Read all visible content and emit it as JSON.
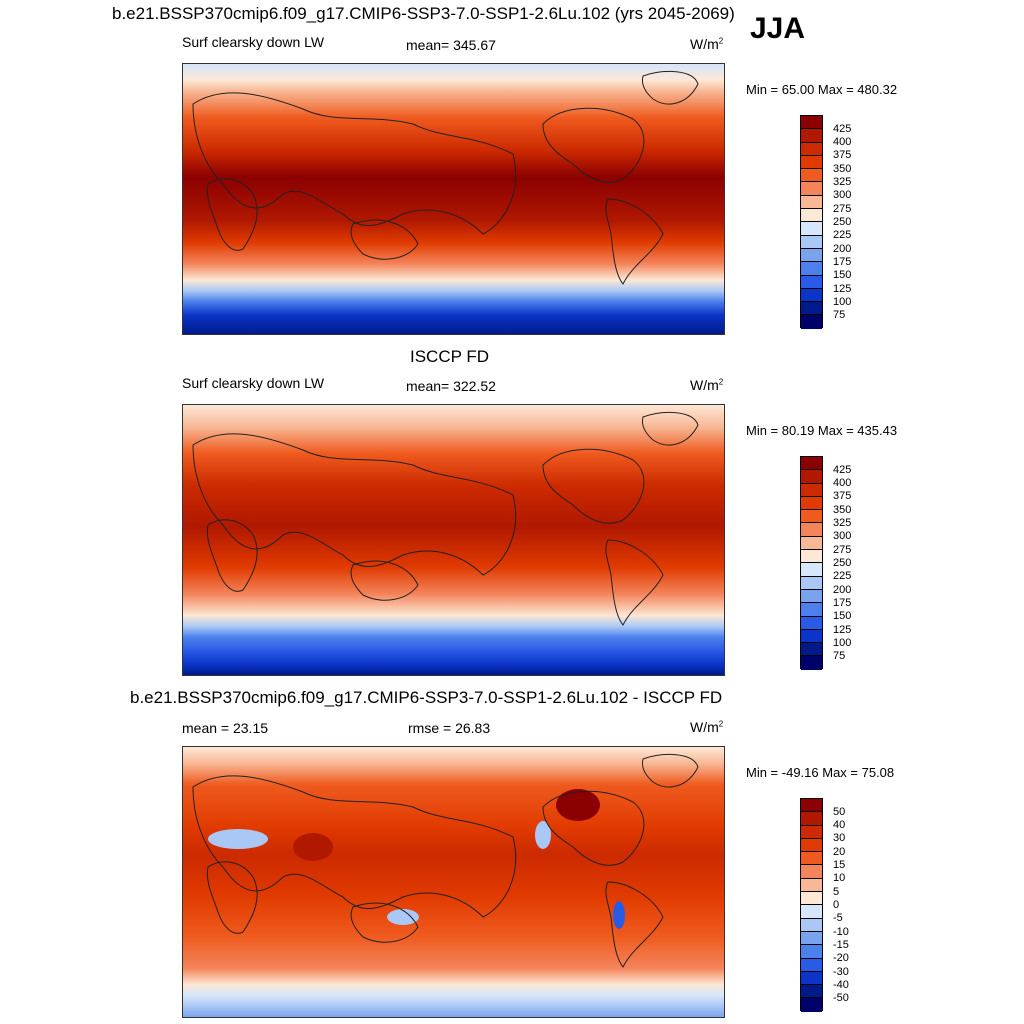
{
  "season": "JJA",
  "panels": [
    {
      "title": "b.e21.BSSP370cmip6.f09_g17.CMIP6-SSP3-7.0-SSP1-2.6Lu.102 (yrs 2045-2069)",
      "left_label": "Surf clearsky down LW",
      "center_label": "mean= 345.67",
      "units": "W/m",
      "units_sup": "2",
      "minmax": "Min =  65.00 Max = 480.32",
      "levels": [
        "425",
        "400",
        "375",
        "350",
        "325",
        "300",
        "275",
        "250",
        "225",
        "200",
        "175",
        "150",
        "125",
        "100",
        "75"
      ]
    },
    {
      "title": "ISCCP FD",
      "left_label": "Surf clearsky down LW",
      "center_label": "mean= 322.52",
      "units": "W/m",
      "units_sup": "2",
      "minmax": "Min =  80.19 Max = 435.43",
      "levels": [
        "425",
        "400",
        "375",
        "350",
        "325",
        "300",
        "275",
        "250",
        "225",
        "200",
        "175",
        "150",
        "125",
        "100",
        "75"
      ]
    },
    {
      "title": "b.e21.BSSP370cmip6.f09_g17.CMIP6-SSP3-7.0-SSP1-2.6Lu.102 - ISCCP FD",
      "left_label": "mean =  23.15",
      "center_label": "rmse =  26.83",
      "units": "W/m",
      "units_sup": "2",
      "minmax": "Min = -49.16 Max =  75.08",
      "levels": [
        "50",
        "40",
        "30",
        "20",
        "15",
        "10",
        "5",
        "0",
        "-5",
        "-10",
        "-15",
        "-20",
        "-30",
        "-40",
        "-50"
      ]
    }
  ],
  "colors": {
    "scale": [
      "#8b0000",
      "#b01800",
      "#cc2a00",
      "#e03a00",
      "#ef5a1e",
      "#f4845a",
      "#f8b896",
      "#fde8d6",
      "#d6e6fb",
      "#aac8f5",
      "#7aa3ee",
      "#4c80ec",
      "#2a5be6",
      "#0b34c8",
      "#001a8c",
      "#00006b"
    ]
  }
}
